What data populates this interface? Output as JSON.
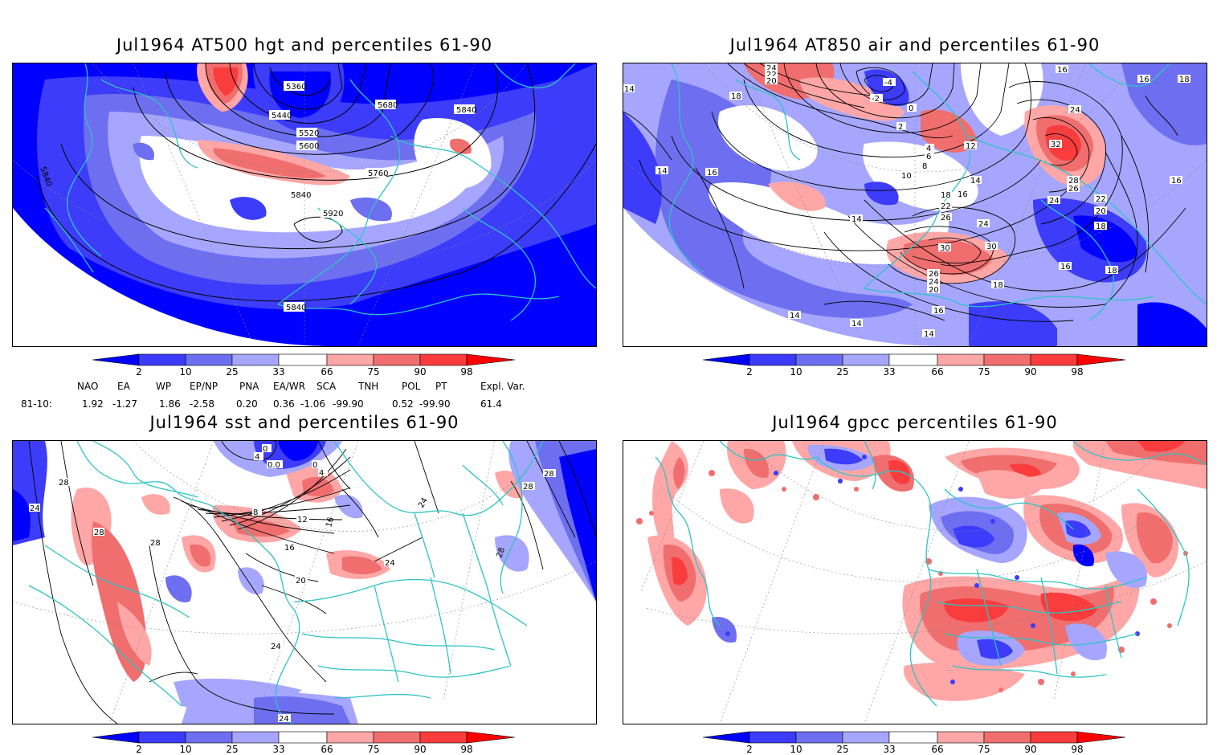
{
  "panels": [
    {
      "title": "Jul1964 AT500 hgt and percentiles 61-90",
      "contour_labels": [
        "5360",
        "5440",
        "5520",
        "5600",
        "5680",
        "5760",
        "5840",
        "5920",
        "5840",
        "5840",
        "5840"
      ]
    },
    {
      "title": "Jul1964 AT850 air and percentiles 61-90",
      "contour_labels": [
        "24",
        "22",
        "20",
        "18",
        "16",
        "14",
        "-4",
        "-2",
        "0",
        "2",
        "4",
        "6",
        "8",
        "10",
        "12",
        "14",
        "16",
        "18",
        "22",
        "26",
        "24",
        "30",
        "32",
        "28",
        "26",
        "24",
        "22",
        "20",
        "18",
        "16",
        "14",
        "16",
        "18",
        "16",
        "24",
        "30",
        "26",
        "24",
        "20",
        "18",
        "16",
        "14",
        "14",
        "14",
        "14",
        "16",
        "18"
      ]
    },
    {
      "title": "Jul1964 sst and percentiles 61-90",
      "contour_labels": [
        "28",
        "24",
        "28",
        "28",
        "0",
        "4",
        "0.0",
        "0",
        "4",
        "8",
        "12",
        "16",
        "20",
        "24",
        "24",
        "16",
        "24",
        "28",
        "28",
        "28",
        "24"
      ]
    },
    {
      "title": "Jul1964 gpcc percentiles 61-90",
      "contour_labels": []
    }
  ],
  "colorbar": {
    "labels": [
      "2",
      "10",
      "25",
      "33",
      "66",
      "75",
      "90",
      "98"
    ],
    "colors": [
      "#0000ff",
      "#3c3cfa",
      "#6e6ef0",
      "#a6a6ff",
      "#ffffff",
      "#ffa6a6",
      "#f06e6e",
      "#fa3c3c",
      "#ff0000"
    ]
  },
  "indices": {
    "headers": [
      "NAO",
      "EA",
      "WP",
      "EP/NP",
      "PNA",
      "EA/WR",
      "SCA",
      "TNH",
      "POL",
      "PT",
      "Expl. Var."
    ],
    "row_label": "81-10:",
    "values": [
      "1.92",
      "-1.27",
      "1.86",
      "-2.58",
      "0.20",
      "0.36",
      "-1.06",
      "-99.90",
      "0.52",
      "-99.90",
      "61.4"
    ]
  },
  "colors": {
    "coast": "#2ec4c4",
    "contour": "#000000",
    "grid": "#888888"
  }
}
